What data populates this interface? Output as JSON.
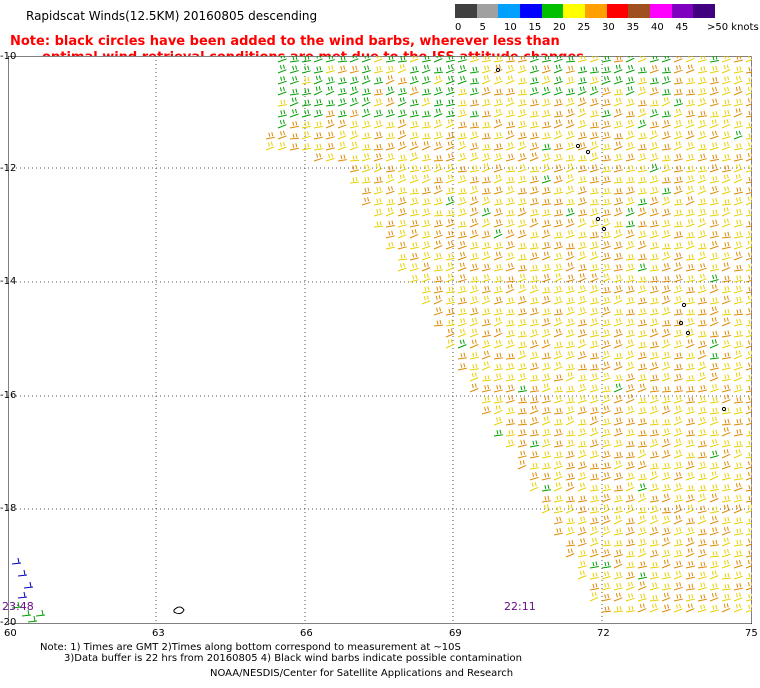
{
  "header": {
    "title": "Rapidscat Winds(12.5KM) 20160805 descending",
    "note_line1": "Note: black circles have been added to the wind barbs, wherever less than",
    "note_line2": "optimal wind retrieval conditions are met due to the ISS attitude changes."
  },
  "legend": {
    "unit": ">50 knots",
    "ticks": [
      "0",
      "5",
      "10",
      "15",
      "20",
      "25",
      "30",
      "35",
      "40",
      "45"
    ],
    "colors": [
      "#404040",
      "#a0a0a0",
      "#00a0ff",
      "#0000ff",
      "#00c000",
      "#ffff00",
      "#ffa000",
      "#ff0000",
      "#a05020",
      "#ff00ff",
      "#8000c0",
      "#400080"
    ]
  },
  "map": {
    "lat_labels": [
      "-10",
      "-12",
      "-14",
      "-16",
      "-18",
      "-20"
    ],
    "lon_labels": [
      "60",
      "63",
      "66",
      "69",
      "72",
      "75"
    ],
    "time_labels": [
      "23:48",
      "22:11"
    ],
    "barb_colors": {
      "yellow": "#e8d000",
      "orange": "#e08a00",
      "green": "#00a000",
      "blue": "#0000c0",
      "black": "#000000"
    }
  },
  "footer": {
    "line1": "Note: 1) Times are GMT 2)Times along bottom correspond to measurement at ~10S",
    "line2": "3)Data buffer is 22 hrs from 20160805 4) Black wind barbs indicate possible contamination",
    "line3": "NOAA/NESDIS/Center for Satellite Applications and Research"
  }
}
